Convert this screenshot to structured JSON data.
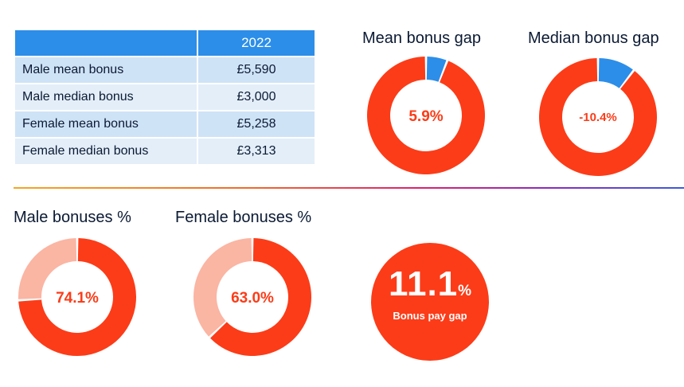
{
  "table": {
    "year": "2022",
    "rows": [
      {
        "label": "Male mean bonus",
        "value": "£5,590"
      },
      {
        "label": "Male median bonus",
        "value": "£3,000"
      },
      {
        "label": "Female mean bonus",
        "value": "£5,258"
      },
      {
        "label": "Female median bonus",
        "value": "£3,313"
      }
    ]
  },
  "chart_data": [
    {
      "type": "pie",
      "title": "Mean bonus gap",
      "center_label": "5.9%",
      "values": [
        5.9,
        94.1
      ],
      "colors": [
        "#2c8ee8",
        "#fc3c18"
      ],
      "label_color": "#fc3c18"
    },
    {
      "type": "pie",
      "title": "Median bonus gap",
      "center_label": "-10.4%",
      "values": [
        10.4,
        89.6
      ],
      "colors": [
        "#2c8ee8",
        "#fc3c18"
      ],
      "label_color": "#fc3c18"
    },
    {
      "type": "pie",
      "title": "Male bonuses %",
      "center_label": "74.1%",
      "values": [
        74.1,
        25.9
      ],
      "colors": [
        "#fc3c18",
        "#fbb5a3"
      ],
      "label_color": "#fc3c18"
    },
    {
      "type": "pie",
      "title": "Female bonuses %",
      "center_label": "63.0%",
      "values": [
        63.0,
        37.0
      ],
      "colors": [
        "#fc3c18",
        "#fbb5a3"
      ],
      "label_color": "#fc3c18"
    }
  ],
  "bonus_pay_gap": {
    "value": "11.1",
    "unit": "%",
    "label": "Bonus pay gap",
    "color": "#fc3c18"
  }
}
